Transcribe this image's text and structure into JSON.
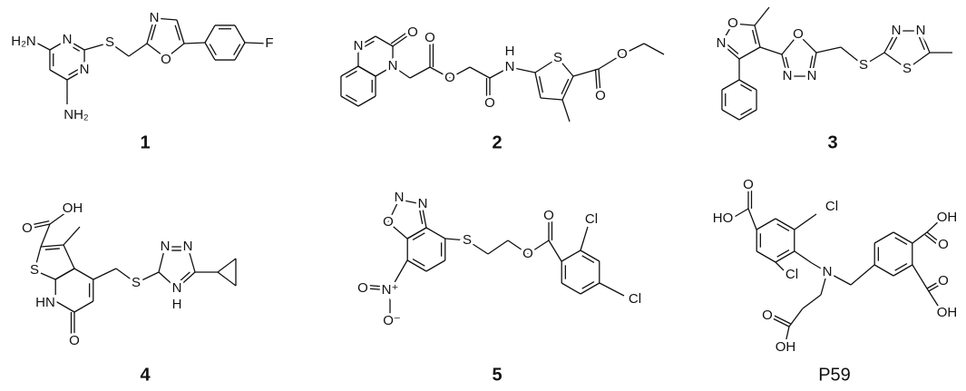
{
  "molecules": [
    {
      "label": "1",
      "atoms": [
        "H₂N",
        "N",
        "N",
        "NH₂",
        "S",
        "N",
        "O",
        "F"
      ]
    },
    {
      "label": "2",
      "atoms": [
        "N",
        "O",
        "N",
        "O",
        "O",
        "O",
        "H",
        "N",
        "S",
        "O",
        "O"
      ]
    },
    {
      "label": "3",
      "atoms": [
        "O",
        "N",
        "O",
        "N",
        "N",
        "S",
        "N",
        "N",
        "S"
      ]
    },
    {
      "label": "4",
      "atoms": [
        "O",
        "OH",
        "S",
        "HN",
        "O",
        "S",
        "N",
        "N",
        "N",
        "H"
      ]
    },
    {
      "label": "5",
      "atoms": [
        "O",
        "N",
        "N",
        "S",
        "N⁺",
        "O",
        "O⁻",
        "O",
        "O",
        "Cl",
        "Cl"
      ]
    },
    {
      "label": "P59",
      "atoms": [
        "O",
        "HO",
        "Cl",
        "Cl",
        "N",
        "OH",
        "O",
        "O",
        "OH",
        "O",
        "OH"
      ]
    }
  ]
}
